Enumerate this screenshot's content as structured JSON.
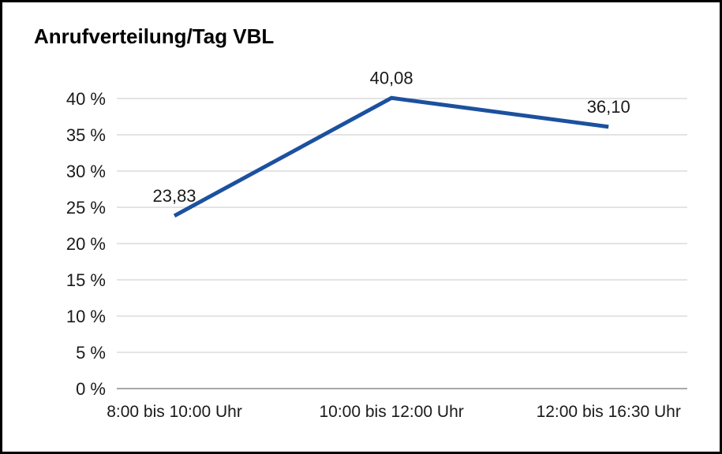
{
  "page": {
    "title": "Anrufverteilung/Tag VBL"
  },
  "chart_data": {
    "type": "line",
    "title": "Anrufverteilung/Tag VBL",
    "categories": [
      "8:00 bis 10:00 Uhr",
      "10:00 bis 12:00 Uhr",
      "12:00 bis 16:30 Uhr"
    ],
    "values": [
      23.83,
      40.08,
      36.1
    ],
    "data_labels": [
      "23,83",
      "40,08",
      "36,10"
    ],
    "xlabel": "",
    "ylabel": "",
    "ylim": [
      0,
      40
    ],
    "y_ticks": [
      0,
      5,
      10,
      15,
      20,
      25,
      30,
      35,
      40
    ],
    "y_tick_labels": [
      "0 %",
      "5 %",
      "10 %",
      "15 %",
      "20 %",
      "25 %",
      "30 %",
      "35 %",
      "40 %"
    ],
    "grid": true,
    "legend": "none",
    "colors": {
      "line": "#1b519f",
      "grid": "#c9c9c9",
      "axis": "#8c8c8c",
      "text": "#1a1a1a"
    }
  }
}
